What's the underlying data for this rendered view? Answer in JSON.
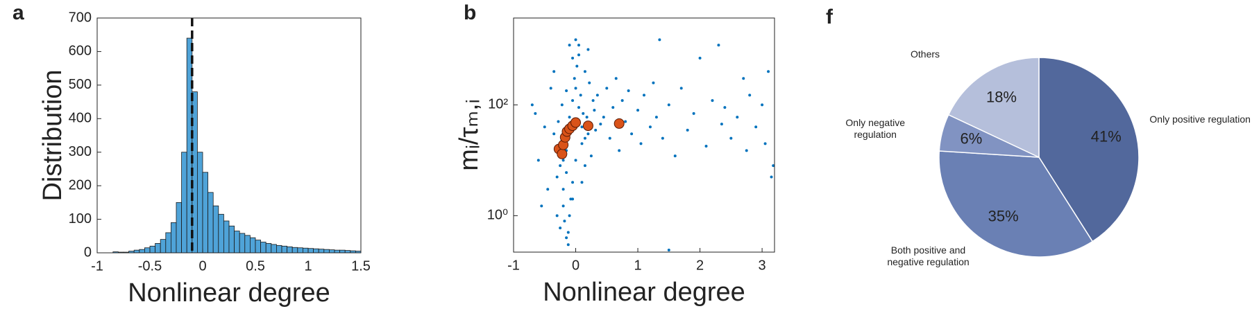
{
  "chart_data": [
    {
      "type": "histogram",
      "panel_label": "a",
      "xlabel": "Nonlinear degree",
      "ylabel": "Distribution",
      "bins": [
        -1,
        -0.95,
        -0.9,
        -0.85,
        -0.8,
        -0.75,
        -0.7,
        -0.65,
        -0.6,
        -0.55,
        -0.5,
        -0.45,
        -0.4,
        -0.35,
        -0.3,
        -0.25,
        -0.2,
        -0.15,
        -0.1,
        -0.05,
        0,
        0.05,
        0.1,
        0.15,
        0.2,
        0.25,
        0.3,
        0.35,
        0.4,
        0.45,
        0.5,
        0.55,
        0.6,
        0.65,
        0.7,
        0.75,
        0.8,
        0.85,
        0.9,
        0.95,
        1,
        1.05,
        1.1,
        1.15,
        1.2,
        1.25,
        1.3,
        1.35,
        1.4,
        1.45,
        1.5
      ],
      "values": [
        0,
        0,
        0,
        3,
        2,
        2,
        5,
        8,
        10,
        15,
        20,
        28,
        40,
        60,
        90,
        150,
        300,
        640,
        480,
        300,
        240,
        180,
        140,
        115,
        95,
        80,
        65,
        58,
        52,
        45,
        38,
        32,
        28,
        25,
        22,
        20,
        18,
        16,
        15,
        14,
        13,
        12,
        11,
        10,
        9,
        8,
        8,
        7,
        6,
        5
      ],
      "color": "#4fa3d8",
      "vline": -0.1,
      "xlim": [
        -1,
        1.5
      ],
      "xticks": [
        -1,
        -0.5,
        0,
        0.5,
        1,
        1.5
      ],
      "ylim": [
        0,
        700
      ],
      "yticks": [
        0,
        100,
        200,
        300,
        400,
        500,
        600,
        700
      ]
    },
    {
      "type": "scatter",
      "panel_label": "b",
      "xlabel": "Nonlinear degree",
      "ylabel": "mᵢ/τₘ,ᵢ",
      "log_y": true,
      "xlim": [
        -1,
        3.2
      ],
      "xticks": [
        -1,
        0,
        1,
        2,
        3
      ],
      "ylim": [
        0.22,
        3700
      ],
      "yticks": [
        {
          "value": 1,
          "label": "10⁰"
        },
        {
          "value": 100,
          "label": "10²"
        }
      ],
      "series": [
        {
          "color": "#0072bd",
          "size": 2,
          "x": [
            -0.3,
            -0.25,
            -0.2,
            -0.15,
            -0.1,
            -0.05,
            0,
            0.05,
            0.1,
            0.15,
            -0.2,
            -0.18,
            -0.12,
            -0.08,
            -0.02,
            0.02,
            0.08,
            0.12,
            0.2,
            0.25,
            -0.35,
            -0.28,
            -0.22,
            -0.15,
            -0.05,
            0.05,
            0.15,
            0.3,
            0.35,
            0.4,
            -0.15,
            -0.12,
            -0.1,
            -0.05,
            0,
            0.1,
            0.18,
            0.22,
            0.28,
            0.32,
            0.45,
            0.5,
            0.55,
            0.6,
            0.65,
            0.7,
            0.75,
            0.8,
            0.85,
            0.9,
            1.0,
            1.05,
            1.1,
            1.2,
            1.25,
            1.3,
            1.35,
            1.4,
            1.5,
            1.6,
            1.7,
            1.8,
            1.9,
            2.0,
            2.1,
            2.2,
            2.3,
            2.35,
            2.4,
            2.5,
            2.6,
            2.7,
            2.75,
            2.8,
            2.9,
            3.0,
            3.05,
            3.1,
            3.15,
            3.18,
            -0.6,
            -0.5,
            -0.45,
            -0.4,
            -0.55,
            -0.65,
            -0.7,
            -0.3,
            -0.25,
            -0.35,
            -0.1,
            0,
            0.05,
            -0.05,
            0.1,
            0.15,
            0.2,
            -0.15,
            -0.2,
            1.5
          ],
          "values": [
            5,
            8,
            3,
            15,
            60,
            120,
            200,
            90,
            40,
            25,
            1.5,
            0.8,
            0.5,
            2,
            300,
            500,
            150,
            70,
            30,
            12,
            30,
            50,
            100,
            180,
            700,
            1200,
            400,
            80,
            150,
            45,
            0.4,
            0.3,
            1,
            4,
            10,
            20,
            60,
            250,
            120,
            35,
            60,
            200,
            25,
            90,
            300,
            15,
            120,
            50,
            180,
            30,
            80,
            20,
            150,
            40,
            250,
            60,
            1500,
            25,
            100,
            12,
            200,
            35,
            70,
            700,
            18,
            120,
            1200,
            45,
            90,
            25,
            60,
            300,
            15,
            150,
            40,
            100,
            20,
            400,
            5,
            8,
            10,
            40,
            3,
            200,
            1.5,
            70,
            100,
            1,
            0.6,
            400,
            1200,
            1500,
            800,
            2,
            4,
            8,
            1000,
            6,
            10,
            0.24
          ]
        },
        {
          "color": "#d95319",
          "size": 7,
          "x": [
            -0.27,
            -0.22,
            -0.2,
            -0.17,
            -0.14,
            -0.1,
            -0.05,
            0,
            0.2,
            0.7
          ],
          "values": [
            16,
            13,
            19,
            26,
            33,
            37,
            42,
            48,
            42,
            46
          ]
        }
      ]
    },
    {
      "type": "pie",
      "panel_label": "f",
      "categories": [
        "Only positive regulation",
        "Both positive and negative regulation",
        "Only negative regulation",
        "Others"
      ],
      "values": [
        41,
        35,
        6,
        18
      ],
      "value_labels": [
        "41%",
        "35%",
        "6%",
        "18%"
      ],
      "colors": [
        "#52689c",
        "#6a80b4",
        "#8193c2",
        "#b5bfdb"
      ]
    }
  ]
}
